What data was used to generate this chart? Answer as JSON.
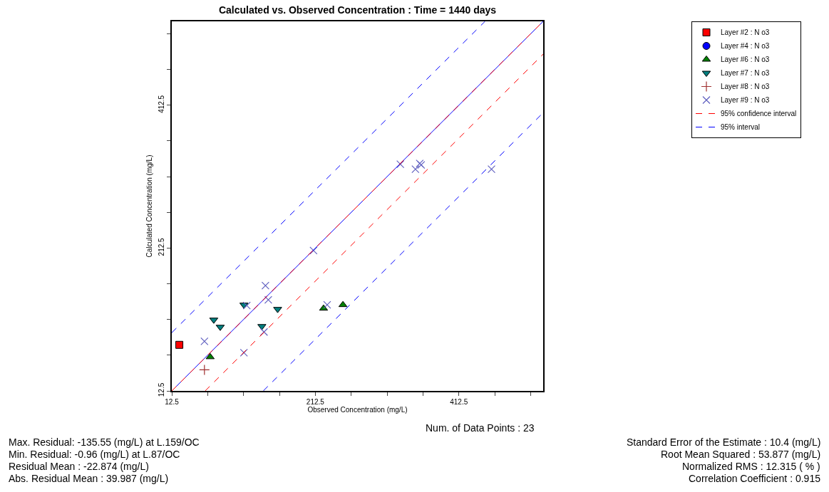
{
  "chart_data": {
    "type": "scatter",
    "title": "Calculated vs. Observed Concentration : Time = 1440 days",
    "xlabel": "Observed Concentration (mg/L)",
    "ylabel": "Calculated Concentration (mg/L)",
    "xlim": [
      12.5,
      530
    ],
    "ylim": [
      12.5,
      530
    ],
    "xticks": [
      12.5,
      {
        "value": 62.5,
        "label": null
      },
      {
        "value": 112.5,
        "label": null
      },
      {
        "value": 162.5,
        "label": null
      },
      212.5,
      {
        "value": 262.5,
        "label": null
      },
      {
        "value": 312.5,
        "label": null
      },
      {
        "value": 362.5,
        "label": null
      },
      412.5,
      {
        "value": 462.5,
        "label": null
      },
      {
        "value": 512.5,
        "label": null
      }
    ],
    "yticks": [
      12.5,
      {
        "value": 62.5,
        "label": null
      },
      {
        "value": 112.5,
        "label": null
      },
      {
        "value": 162.5,
        "label": null
      },
      212.5,
      {
        "value": 262.5,
        "label": null
      },
      {
        "value": 312.5,
        "label": null
      },
      {
        "value": 362.5,
        "label": null
      },
      412.5,
      {
        "value": 462.5,
        "label": null
      },
      {
        "value": 512.5,
        "label": null
      }
    ],
    "grid": false,
    "legend": "top right",
    "series": [
      {
        "name": "Layer #2 : N o3",
        "color": "#ff0000",
        "marker": "square",
        "x": [
          23
        ],
        "values": [
          77
        ]
      },
      {
        "name": "Layer #4 : N o3",
        "color": "#0000ff",
        "marker": "circle",
        "x": [
          null
        ],
        "values": [
          null
        ]
      },
      {
        "name": "Layer #6 : N o3",
        "color": "#008000",
        "marker": "triangle",
        "x": [
          66,
          224,
          251
        ],
        "values": [
          60,
          128,
          133
        ]
      },
      {
        "name": "Layer #7 : N o3",
        "color": "#007f7f",
        "marker": "triangle-down",
        "x": [
          113,
          71,
          80,
          160,
          138
        ],
        "values": [
          133,
          112,
          102,
          127,
          103
        ]
      },
      {
        "name": "Layer #8 : N o3",
        "color": "#a03030",
        "marker": "cross",
        "x": [
          58
        ],
        "values": [
          42
        ]
      },
      {
        "name": "Layer #9 : N o3",
        "color": "#6060c0",
        "marker": "x",
        "x": [
          143,
          147,
          117,
          141,
          58,
          113,
          229,
          210,
          331,
          352,
          360,
          358,
          458
        ],
        "values": [
          160,
          140,
          132,
          95,
          82,
          66,
          133,
          209,
          330,
          323,
          329,
          331,
          323
        ]
      },
      {
        "type": "line",
        "color": "#0000ff",
        "line_style": "solid",
        "x": [
          12.5,
          530
        ],
        "values": [
          12.5,
          530
        ]
      },
      {
        "type": "line",
        "name": "95% confidence interval",
        "color": "#ff0000",
        "line_style": "dashed",
        "x": [
          12.5,
          530,
          null,
          59,
          530
        ],
        "values": [
          12.5,
          530,
          null,
          12.5,
          484
        ]
      },
      {
        "type": "line",
        "name": "95% interval",
        "color": "#0000ff",
        "line_style": "dashed",
        "x": [
          12.5,
          449,
          null,
          140,
          530
        ],
        "values": [
          94,
          530,
          null,
          12.5,
          402
        ]
      }
    ],
    "annotations": [
      "Num. of Data Points : 23",
      "Max. Residual: -135.55 (mg/L) at L.159/OC",
      "Min. Residual: -0.96 (mg/L) at L.87/OC",
      "Residual Mean : -22.874 (mg/L)",
      "Abs. Residual Mean : 39.987 (mg/L)",
      "Standard Error of the Estimate : 10.4 (mg/L)",
      "Root Mean Squared : 53.877 (mg/L)",
      "Normalized RMS : 12.315 ( % )",
      "Correlation Coefficient : 0.915"
    ]
  }
}
